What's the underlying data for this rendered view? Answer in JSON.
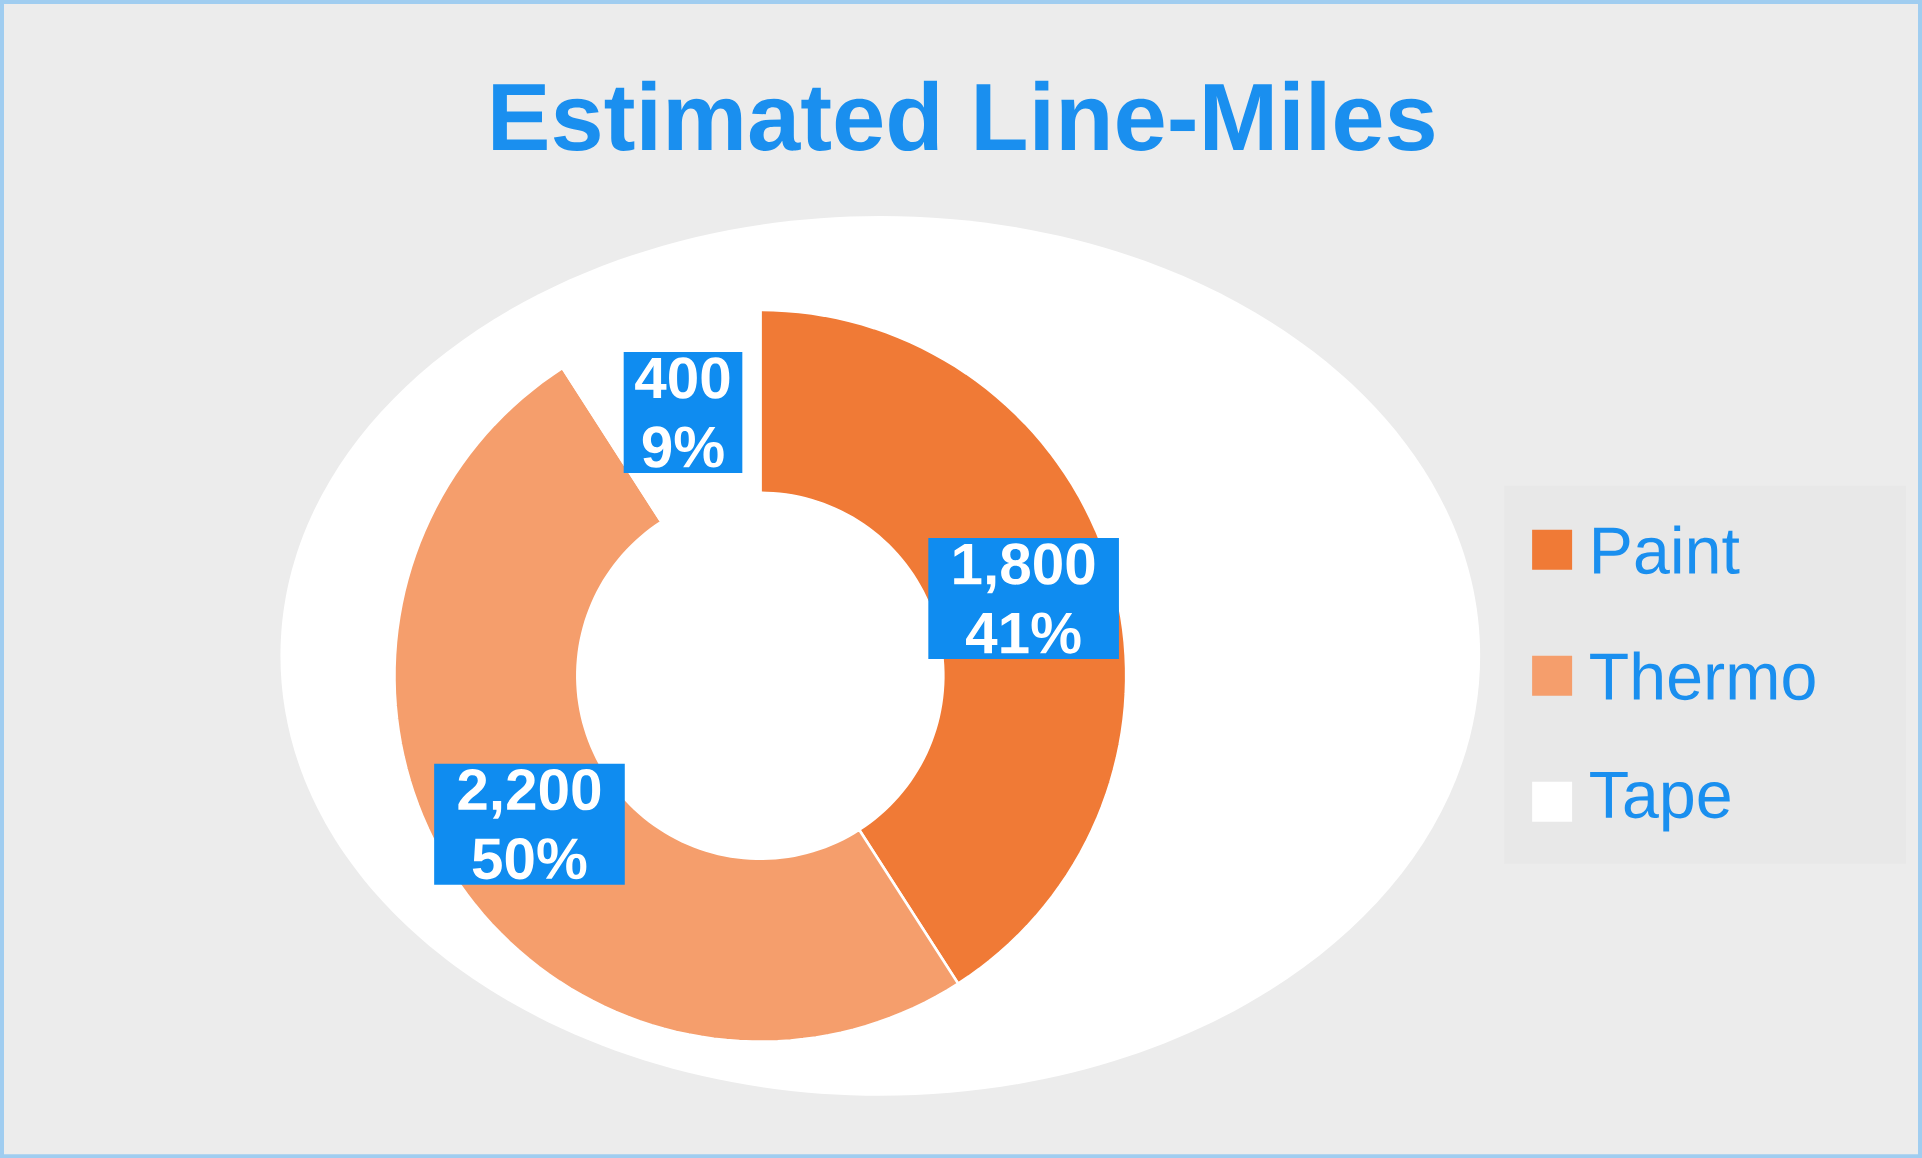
{
  "chart_data": {
    "type": "donut",
    "title": "Estimated Line-Miles",
    "categories": [
      "Paint",
      "Thermo",
      "Tape"
    ],
    "values": [
      1800,
      2200,
      400
    ],
    "colors": [
      "#f07a36",
      "#f59e6c",
      "#ffffff"
    ],
    "value_labels": [
      "1,800 41%",
      "2,200 50%",
      "400 9%"
    ],
    "legend": "right"
  }
}
